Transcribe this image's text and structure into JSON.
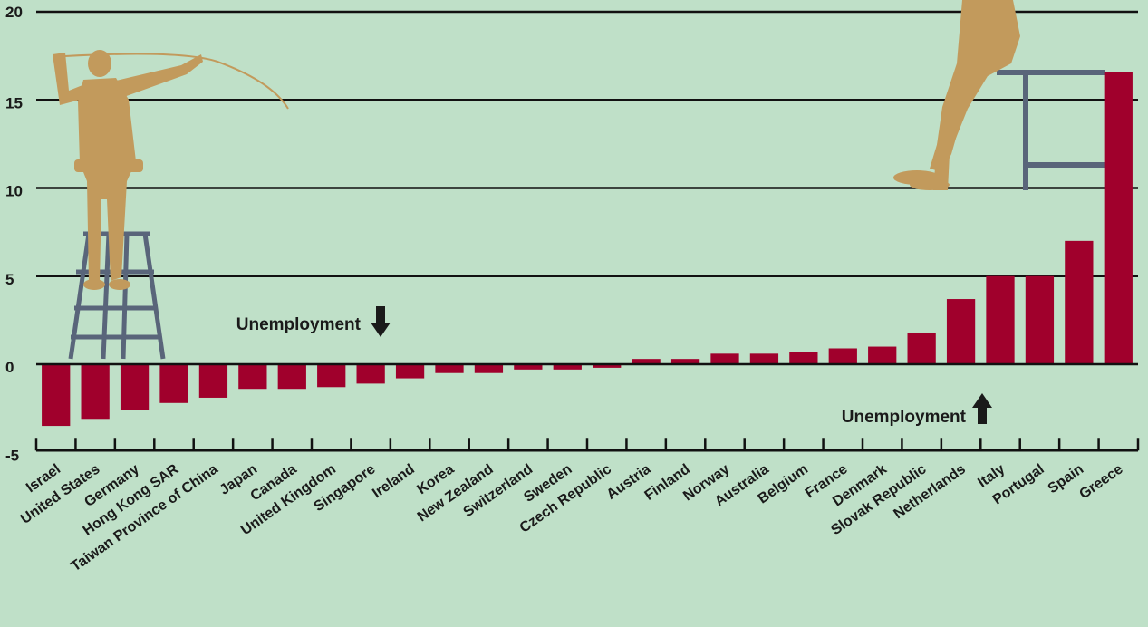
{
  "chart_data": {
    "type": "bar",
    "categories": [
      "Israel",
      "United States",
      "Germany",
      "Hong Kong SAR",
      "Taiwan Province of China",
      "Japan",
      "Canada",
      "United Kingdom",
      "Singapore",
      "Ireland",
      "Korea",
      "New Zealand",
      "Switzerland",
      "Sweden",
      "Czech Republic",
      "Austria",
      "Finland",
      "Norway",
      "Australia",
      "Belgium",
      "France",
      "Denmark",
      "Slovak Republic",
      "Netherlands",
      "Italy",
      "Portugal",
      "Spain",
      "Greece"
    ],
    "values": [
      -3.5,
      -3.1,
      -2.6,
      -2.2,
      -1.9,
      -1.4,
      -1.4,
      -1.3,
      -1.1,
      -0.8,
      -0.5,
      -0.5,
      -0.3,
      -0.3,
      -0.2,
      0.3,
      0.3,
      0.6,
      0.6,
      0.7,
      0.9,
      1.0,
      1.8,
      3.7,
      5.0,
      5.0,
      7.0,
      16.6
    ],
    "ylim": [
      -5,
      20
    ],
    "yticks": [
      -5,
      0,
      5,
      10,
      15,
      20
    ],
    "grid": true,
    "annotations": [
      {
        "text": "Unemployment",
        "direction": "down"
      },
      {
        "text": "Unemployment",
        "direction": "up"
      }
    ]
  },
  "colors": {
    "background": "#bfe0c8",
    "bar": "#a0002c",
    "gridline": "#111111",
    "silhouette": "#c29a5c",
    "ladder": "#59657a"
  },
  "illustrations": [
    "worker-on-ladder-icon",
    "worker-on-stool-icon"
  ]
}
